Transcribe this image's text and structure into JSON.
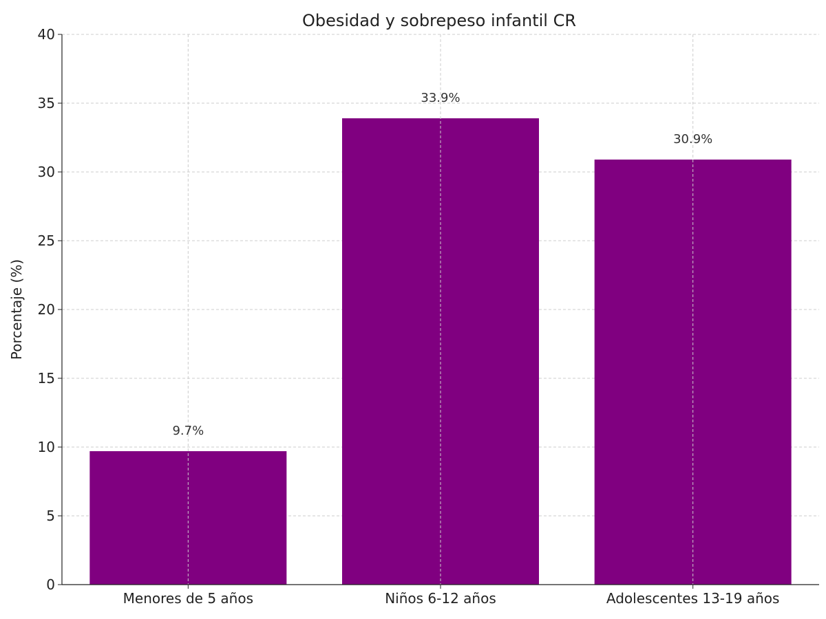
{
  "chart_data": {
    "type": "bar",
    "title": "Obesidad y sobrepeso infantil CR",
    "xlabel": "",
    "ylabel": "Porcentaje (%)",
    "categories": [
      "Menores de 5 años",
      "Niños 6-12 años",
      "Adolescentes 13-19 años"
    ],
    "values": [
      9.7,
      33.9,
      30.9
    ],
    "value_labels": [
      "9.7%",
      "33.9%",
      "30.9%"
    ],
    "ylim": [
      0,
      40
    ],
    "yticks": [
      0,
      5,
      10,
      15,
      20,
      25,
      30,
      35,
      40
    ],
    "grid": true,
    "bar_color": "#800080",
    "grid_color": "#cccccc"
  }
}
